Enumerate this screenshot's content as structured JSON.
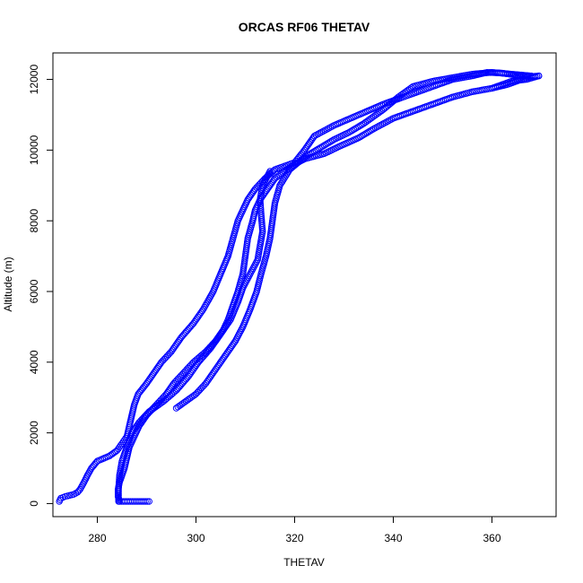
{
  "chart_data": {
    "type": "scatter",
    "title": "ORCAS RF06 THETAV",
    "xlabel": "THETAV",
    "ylabel": "Altitude (m)",
    "xlim": [
      271,
      373
    ],
    "ylim": [
      -370,
      12750
    ],
    "xticks": [
      280,
      300,
      320,
      340,
      360
    ],
    "yticks": [
      0,
      2000,
      4000,
      6000,
      8000,
      10000,
      12000
    ],
    "marker": "open-circle",
    "color": "#0000ff",
    "series": [
      {
        "legs": [
          [
            [
              272.3,
              60
            ],
            [
              272.6,
              150
            ],
            [
              273.5,
              200
            ],
            [
              275.2,
              260
            ],
            [
              276.0,
              320
            ],
            [
              276.5,
              400
            ],
            [
              277.3,
              600
            ],
            [
              278.0,
              800
            ],
            [
              278.8,
              1000
            ],
            [
              280.0,
              1200
            ],
            [
              282.5,
              1350
            ],
            [
              284.0,
              1500
            ],
            [
              285.0,
              1700
            ],
            [
              286.0,
              1900
            ],
            [
              286.5,
              2200
            ],
            [
              287.0,
              2500
            ],
            [
              287.5,
              2800
            ],
            [
              288.3,
              3100
            ],
            [
              290.0,
              3400
            ],
            [
              291.5,
              3700
            ],
            [
              293.0,
              4000
            ],
            [
              295.0,
              4300
            ],
            [
              297.0,
              4700
            ],
            [
              299.5,
              5100
            ],
            [
              301.5,
              5500
            ],
            [
              303.5,
              6000
            ],
            [
              305.0,
              6500
            ],
            [
              306.5,
              7000
            ],
            [
              307.5,
              7500
            ],
            [
              308.5,
              8000
            ],
            [
              309.5,
              8300
            ],
            [
              310.5,
              8600
            ],
            [
              312.0,
              8900
            ],
            [
              314.0,
              9200
            ],
            [
              316.0,
              9450
            ],
            [
              318.0,
              9550
            ],
            [
              320.0,
              9650
            ],
            [
              322.0,
              10000
            ],
            [
              324.0,
              10400
            ],
            [
              328.0,
              10700
            ],
            [
              333.0,
              11000
            ],
            [
              338.0,
              11300
            ],
            [
              343.0,
              11550
            ],
            [
              348.0,
              11800
            ],
            [
              352.0,
              12000
            ],
            [
              356.0,
              12100
            ],
            [
              359.0,
              12200
            ],
            [
              362.0,
              12180
            ],
            [
              365.0,
              12120
            ],
            [
              368.0,
              12080
            ],
            [
              369.5,
              12100
            ]
          ],
          [
            [
              369.5,
              12100
            ],
            [
              367.0,
              12000
            ],
            [
              364.0,
              11950
            ],
            [
              360.0,
              11750
            ],
            [
              356.0,
              11650
            ],
            [
              352.0,
              11500
            ],
            [
              348.0,
              11300
            ],
            [
              344.0,
              11100
            ],
            [
              340.0,
              10900
            ],
            [
              336.0,
              10600
            ],
            [
              333.0,
              10350
            ],
            [
              329.0,
              10100
            ],
            [
              326.0,
              9900
            ],
            [
              322.0,
              9750
            ],
            [
              320.0,
              9600
            ],
            [
              318.0,
              9400
            ],
            [
              316.0,
              9200
            ],
            [
              314.5,
              8900
            ],
            [
              313.0,
              8600
            ],
            [
              312.0,
              8300
            ],
            [
              311.5,
              8000
            ],
            [
              310.5,
              7500
            ],
            [
              310.0,
              7000
            ],
            [
              309.5,
              6500
            ],
            [
              308.5,
              6000
            ],
            [
              307.5,
              5600
            ],
            [
              306.5,
              5200
            ],
            [
              305.5,
              4900
            ],
            [
              304.0,
              4600
            ],
            [
              302.0,
              4300
            ],
            [
              299.5,
              4000
            ],
            [
              297.5,
              3700
            ],
            [
              295.5,
              3400
            ],
            [
              294.0,
              3100
            ],
            [
              292.0,
              2800
            ],
            [
              290.0,
              2500
            ],
            [
              288.5,
              2200
            ],
            [
              287.5,
              1900
            ],
            [
              286.5,
              1600
            ],
            [
              286.0,
              1300
            ],
            [
              285.5,
              1000
            ],
            [
              285.0,
              800
            ],
            [
              284.5,
              600
            ],
            [
              284.2,
              400
            ],
            [
              284.2,
              200
            ],
            [
              284.5,
              60
            ],
            [
              286.0,
              60
            ],
            [
              287.5,
              60
            ],
            [
              289.0,
              60
            ],
            [
              290.5,
              60
            ]
          ],
          [
            [
              360.0,
              11750
            ],
            [
              363.0,
              11850
            ],
            [
              366.0,
              12000
            ],
            [
              368.0,
              12100
            ],
            [
              364.0,
              12150
            ],
            [
              360.0,
              12200
            ],
            [
              356.0,
              12150
            ],
            [
              352.0,
              12050
            ],
            [
              348.0,
              11950
            ],
            [
              344.0,
              11800
            ],
            [
              341.0,
              11500
            ],
            [
              338.0,
              11150
            ],
            [
              334.0,
              10750
            ],
            [
              331.0,
              10500
            ],
            [
              328.0,
              10300
            ],
            [
              325.0,
              10050
            ],
            [
              322.0,
              9800
            ],
            [
              319.0,
              9450
            ],
            [
              317.0,
              9000
            ],
            [
              316.0,
              8500
            ],
            [
              315.5,
              8000
            ],
            [
              315.0,
              7500
            ],
            [
              314.2,
              7000
            ],
            [
              313.2,
              6500
            ],
            [
              312.3,
              6000
            ],
            [
              311.0,
              5500
            ],
            [
              309.5,
              5000
            ],
            [
              308.0,
              4600
            ],
            [
              306.0,
              4200
            ],
            [
              304.0,
              3800
            ],
            [
              302.0,
              3400
            ],
            [
              300.0,
              3100
            ],
            [
              298.0,
              2900
            ],
            [
              296.0,
              2700
            ]
          ],
          [
            [
              284.3,
              60
            ],
            [
              284.3,
              400
            ],
            [
              284.5,
              800
            ],
            [
              285.0,
              1200
            ],
            [
              286.0,
              1600
            ],
            [
              287.0,
              2000
            ],
            [
              288.5,
              2300
            ],
            [
              290.5,
              2600
            ],
            [
              293.5,
              2900
            ],
            [
              296.0,
              3200
            ],
            [
              298.5,
              3600
            ],
            [
              300.5,
              4000
            ],
            [
              303.0,
              4400
            ],
            [
              305.0,
              4800
            ],
            [
              307.0,
              5200
            ],
            [
              308.5,
              5700
            ],
            [
              309.5,
              6100
            ],
            [
              311.0,
              6500
            ],
            [
              312.5,
              6900
            ],
            [
              313.0,
              7300
            ],
            [
              313.5,
              7700
            ],
            [
              313.2,
              8200
            ],
            [
              313.0,
              8600
            ],
            [
              313.5,
              9000
            ],
            [
              315.0,
              9400
            ]
          ]
        ]
      }
    ]
  }
}
